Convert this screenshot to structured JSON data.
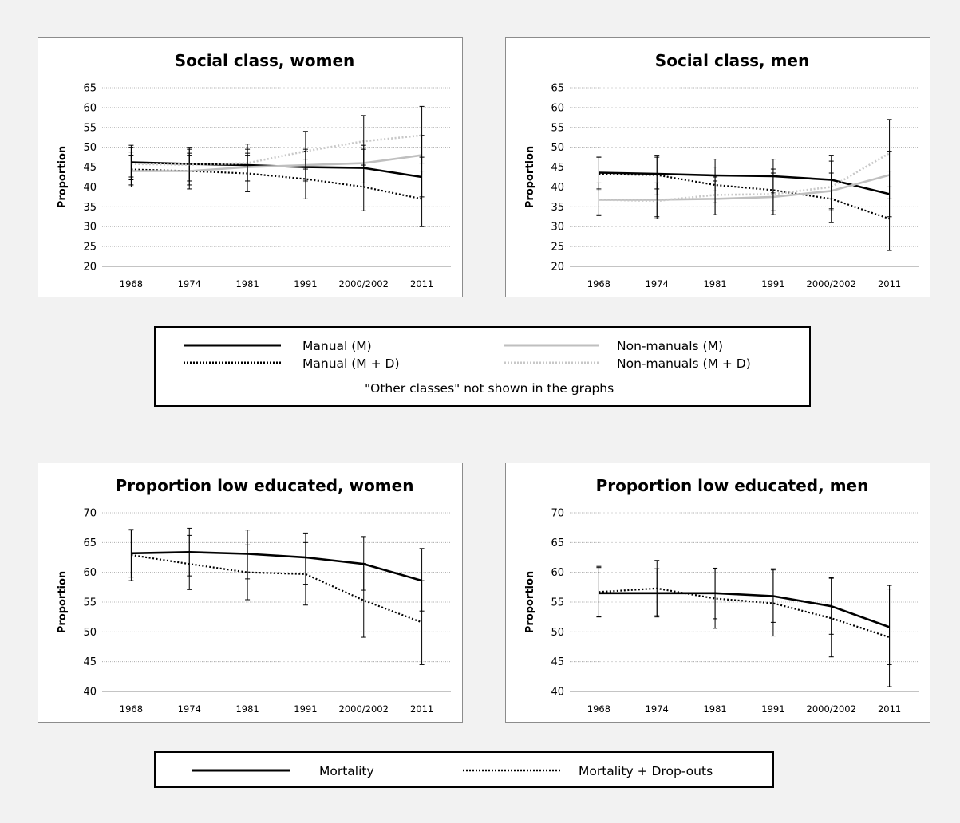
{
  "colors": {
    "black": "#000000",
    "gray": "#bfbfbf",
    "lightgray": "#c8c8c8",
    "grid": "#9a9a9a",
    "background": "#f2f2f2"
  },
  "chart_data": [
    {
      "type": "line",
      "title": "Social class, women",
      "ylabel": "Proportion",
      "xlabel": "",
      "categories": [
        "1968",
        "1974",
        "1981",
        "1991",
        "2000/2002",
        "2011"
      ],
      "ylim": [
        20,
        65
      ],
      "yticks": [
        20,
        25,
        30,
        35,
        40,
        45,
        50,
        55,
        60,
        65
      ],
      "grid": true,
      "series": [
        {
          "name": "Manual (M)",
          "style": "solid-black",
          "values": [
            46.2,
            45.8,
            45.5,
            45.0,
            44.8,
            42.5
          ],
          "err_low": [
            42.5,
            42.0,
            41.5,
            41.0,
            40.0,
            37.5
          ],
          "err_high": [
            50.0,
            49.5,
            49.5,
            49.0,
            49.5,
            47.5
          ]
        },
        {
          "name": "Manual (M + D)",
          "style": "dotted-black",
          "values": [
            44.4,
            44.0,
            43.4,
            42.0,
            40.0,
            37.0
          ],
          "err_low": [
            40.0,
            39.5,
            38.8,
            37.0,
            34.0,
            30.0
          ],
          "err_high": [
            48.8,
            48.5,
            48.0,
            47.0,
            46.0,
            44.0
          ]
        },
        {
          "name": "Non-manuals (M)",
          "style": "solid-gray",
          "values": [
            44.0,
            44.0,
            45.0,
            45.5,
            46.0,
            48.0
          ],
          "err_low": [
            40.5,
            40.5,
            41.5,
            41.5,
            41.0,
            43.0
          ],
          "err_high": [
            48.0,
            48.0,
            48.5,
            49.5,
            50.5,
            53.0
          ]
        },
        {
          "name": "Non-manuals (M + D)",
          "style": "dotted-gray",
          "values": [
            45.8,
            45.6,
            46.0,
            49.0,
            51.5,
            53.0
          ],
          "err_low": [
            41.8,
            41.5,
            41.5,
            44.5,
            45.5,
            46.0
          ],
          "err_high": [
            50.5,
            50.0,
            50.8,
            54.0,
            58.0,
            60.3
          ]
        }
      ]
    },
    {
      "type": "line",
      "title": "Social class, men",
      "ylabel": "Proportion",
      "xlabel": "",
      "categories": [
        "1968",
        "1974",
        "1981",
        "1991",
        "2000/2002",
        "2011"
      ],
      "ylim": [
        20,
        65
      ],
      "yticks": [
        20,
        25,
        30,
        35,
        40,
        45,
        50,
        55,
        60,
        65
      ],
      "grid": true,
      "series": [
        {
          "name": "Manual (M)",
          "style": "solid-black",
          "values": [
            43.6,
            43.3,
            42.9,
            42.7,
            41.8,
            38.2
          ],
          "err_low": [
            39.5,
            39.5,
            39.0,
            38.5,
            37.0,
            32.5
          ],
          "err_high": [
            47.5,
            47.5,
            47.0,
            47.0,
            46.5,
            44.0
          ]
        },
        {
          "name": "Manual (M + D)",
          "style": "dotted-black",
          "values": [
            43.2,
            43.0,
            40.5,
            39.2,
            37.0,
            32.0
          ],
          "err_low": [
            39.0,
            38.0,
            36.0,
            34.0,
            31.0,
            24.0
          ],
          "err_high": [
            47.5,
            48.0,
            45.0,
            44.5,
            43.0,
            40.0
          ]
        },
        {
          "name": "Non-manuals (M)",
          "style": "solid-gray",
          "values": [
            36.8,
            36.8,
            37.0,
            37.5,
            39.0,
            43.0
          ],
          "err_low": [
            32.8,
            32.0,
            33.0,
            33.0,
            34.0,
            37.0
          ],
          "err_high": [
            41.0,
            41.0,
            41.5,
            42.0,
            43.5,
            49.0
          ]
        },
        {
          "name": "Non-manuals (M + D)",
          "style": "dotted-gray",
          "values": [
            36.8,
            36.5,
            38.0,
            38.2,
            40.0,
            48.5
          ],
          "err_low": [
            33.0,
            32.5,
            33.0,
            33.0,
            34.5,
            40.0
          ],
          "err_high": [
            41.0,
            41.0,
            42.5,
            43.5,
            48.0,
            57.0
          ]
        }
      ]
    },
    {
      "type": "line",
      "title": "Proportion low educated, women",
      "ylabel": "Proportion",
      "xlabel": "",
      "categories": [
        "1968",
        "1974",
        "1981",
        "1991",
        "2000/2002",
        "2011"
      ],
      "ylim": [
        40,
        70
      ],
      "yticks": [
        40,
        45,
        50,
        55,
        60,
        65,
        70
      ],
      "grid": true,
      "series": [
        {
          "name": "Mortality",
          "style": "solid-black",
          "values": [
            63.2,
            63.4,
            63.1,
            62.5,
            61.4,
            58.6
          ],
          "err_low": [
            59.2,
            59.4,
            58.9,
            58.0,
            57.0,
            53.5
          ],
          "err_high": [
            67.2,
            67.4,
            67.1,
            66.6,
            66.0,
            64.0
          ]
        },
        {
          "name": "Mortality + Drop-outs",
          "style": "dotted-black",
          "values": [
            62.9,
            61.4,
            60.0,
            59.7,
            55.3,
            51.6
          ],
          "err_low": [
            58.6,
            57.1,
            55.4,
            54.5,
            49.1,
            44.5
          ],
          "err_high": [
            67.1,
            66.2,
            64.6,
            65.0,
            61.5,
            58.6
          ]
        }
      ]
    },
    {
      "type": "line",
      "title": "Proportion low educated, men",
      "ylabel": "Proportion",
      "xlabel": "",
      "categories": [
        "1968",
        "1974",
        "1981",
        "1991",
        "2000/2002",
        "2011"
      ],
      "ylim": [
        40,
        70
      ],
      "yticks": [
        40,
        45,
        50,
        55,
        60,
        65,
        70
      ],
      "grid": true,
      "series": [
        {
          "name": "Mortality",
          "style": "solid-black",
          "values": [
            56.5,
            56.5,
            56.5,
            56.0,
            54.3,
            50.8
          ],
          "err_low": [
            52.5,
            52.5,
            52.2,
            51.6,
            49.6,
            44.5
          ],
          "err_high": [
            60.8,
            60.6,
            60.7,
            60.4,
            59.1,
            57.2
          ]
        },
        {
          "name": "Mortality + Drop-outs",
          "style": "dotted-black",
          "values": [
            56.7,
            57.3,
            55.6,
            54.8,
            52.3,
            49.1
          ],
          "err_low": [
            52.6,
            52.7,
            50.6,
            49.3,
            45.8,
            40.8
          ],
          "err_high": [
            61.0,
            62.0,
            60.6,
            60.6,
            59.0,
            57.8
          ]
        }
      ]
    }
  ],
  "legend_social": {
    "manual_m": "Manual (M)",
    "manual_md": "Manual (M + D)",
    "nonmanual_m": "Non-manuals (M)",
    "nonmanual_md": "Non-manuals (M + D)",
    "note": "\"Other classes\" not shown in the graphs"
  },
  "legend_education": {
    "mortality": "Mortality",
    "mortality_dropouts": "Mortality + Drop-outs"
  }
}
